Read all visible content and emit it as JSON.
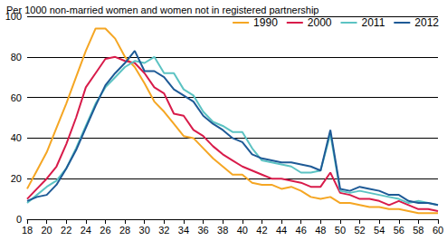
{
  "chart_data": {
    "type": "line",
    "title": "Per 1000 non-married women and women not in registered partnership",
    "x": [
      18,
      19,
      20,
      21,
      22,
      23,
      24,
      25,
      26,
      27,
      28,
      29,
      30,
      31,
      32,
      33,
      34,
      35,
      36,
      37,
      38,
      39,
      40,
      41,
      42,
      43,
      44,
      45,
      46,
      47,
      48,
      49,
      50,
      51,
      52,
      53,
      54,
      55,
      56,
      57,
      58,
      59,
      60
    ],
    "series": [
      {
        "name": "1990",
        "color": "#f5a623",
        "values": [
          15,
          24,
          33,
          45,
          57,
          70,
          83,
          94,
          94,
          89,
          80,
          75,
          67,
          58,
          53,
          47,
          41,
          40,
          35,
          30,
          26,
          22,
          22,
          18,
          17,
          17,
          15,
          16,
          14,
          11,
          10,
          11,
          8,
          8,
          7,
          6,
          6,
          5,
          5,
          4,
          3,
          3,
          3
        ]
      },
      {
        "name": "2000",
        "color": "#d81b4a",
        "values": [
          10,
          15,
          20,
          26,
          37,
          50,
          65,
          72,
          79,
          80,
          78,
          77,
          72,
          65,
          62,
          52,
          51,
          44,
          41,
          36,
          32,
          29,
          26,
          24,
          22,
          20,
          20,
          19,
          18,
          16,
          16,
          23,
          13,
          12,
          10,
          10,
          9,
          7,
          9,
          7,
          5,
          5,
          4
        ]
      },
      {
        "name": "2011",
        "color": "#5cc3c3",
        "values": [
          8,
          12,
          16,
          19,
          25,
          35,
          46,
          57,
          65,
          70,
          75,
          78,
          77,
          80,
          72,
          72,
          64,
          61,
          53,
          48,
          46,
          43,
          43,
          35,
          29,
          28,
          27,
          26,
          23,
          23,
          24,
          42,
          14,
          13,
          14,
          13,
          12,
          11,
          10,
          8,
          9,
          8,
          7
        ]
      },
      {
        "name": "2012",
        "color": "#1e5a96",
        "values": [
          9,
          11,
          12,
          17,
          25,
          34,
          45,
          56,
          66,
          72,
          77,
          83,
          73,
          73,
          70,
          64,
          61,
          58,
          51,
          47,
          44,
          40,
          38,
          32,
          30,
          29,
          28,
          28,
          27,
          26,
          24,
          44,
          15,
          14,
          16,
          15,
          14,
          12,
          12,
          9,
          8,
          8,
          7
        ]
      }
    ],
    "xlim": [
      18,
      60
    ],
    "xticks": [
      18,
      20,
      22,
      24,
      26,
      28,
      30,
      32,
      34,
      36,
      38,
      40,
      42,
      44,
      46,
      48,
      50,
      52,
      54,
      56,
      58,
      60
    ],
    "ylim": [
      0,
      100
    ],
    "yticks": [
      0,
      20,
      40,
      60,
      80,
      100
    ],
    "grid": true,
    "legend": "upper right"
  }
}
